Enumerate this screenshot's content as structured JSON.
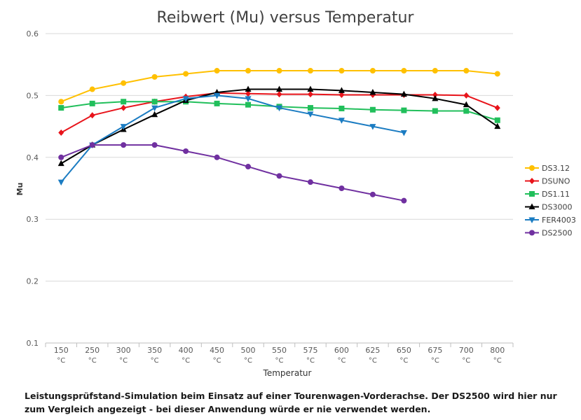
{
  "chart_data": {
    "type": "line",
    "title": "Reibwert (Mu) versus Temperatur",
    "xlabel": "Temperatur",
    "ylabel": "Mu",
    "ylim": [
      0.1,
      0.6
    ],
    "yticks": [
      "0.1",
      "0.2",
      "0.3",
      "0.4",
      "0.5",
      "0.6"
    ],
    "categories": [
      "150",
      "250",
      "300",
      "350",
      "400",
      "450",
      "500",
      "550",
      "575",
      "600",
      "625",
      "650",
      "675",
      "700",
      "800"
    ],
    "unit": "°C",
    "legend_position": "right",
    "grid": "horizontal",
    "series": [
      {
        "name": "DS3.12",
        "color": "#FFC000",
        "marker": "circle",
        "values": [
          0.49,
          0.51,
          0.52,
          0.53,
          0.535,
          0.54,
          0.54,
          0.54,
          0.54,
          0.54,
          0.54,
          0.54,
          0.54,
          0.54,
          0.535
        ]
      },
      {
        "name": "DSUNO",
        "color": "#E8141B",
        "marker": "diamond",
        "values": [
          0.44,
          0.468,
          0.48,
          0.49,
          0.498,
          0.504,
          0.503,
          0.502,
          0.502,
          0.501,
          0.501,
          0.501,
          0.501,
          0.5,
          0.48
        ]
      },
      {
        "name": "DS1.11",
        "color": "#21BF5B",
        "marker": "square",
        "values": [
          0.48,
          0.487,
          0.49,
          0.49,
          0.49,
          0.487,
          0.485,
          0.482,
          0.48,
          0.479,
          0.477,
          0.476,
          0.475,
          0.475,
          0.46
        ]
      },
      {
        "name": "DS3000",
        "color": "#000000",
        "marker": "triangle-up",
        "values": [
          0.39,
          0.42,
          0.445,
          0.469,
          0.492,
          0.505,
          0.51,
          0.51,
          0.51,
          0.508,
          0.505,
          0.502,
          0.495,
          0.485,
          0.45
        ]
      },
      {
        "name": "FER4003",
        "color": "#1B7CC2",
        "marker": "triangle-down",
        "values": [
          0.36,
          0.42,
          0.45,
          0.48,
          0.495,
          0.5,
          0.495,
          0.48,
          0.47,
          0.46,
          0.45,
          0.44,
          null,
          null,
          null
        ]
      },
      {
        "name": "DS2500",
        "color": "#7030A0",
        "marker": "circle",
        "values": [
          0.4,
          0.42,
          0.42,
          0.42,
          0.41,
          0.4,
          0.385,
          0.37,
          0.36,
          0.35,
          0.34,
          0.33,
          null,
          null,
          null
        ]
      }
    ]
  },
  "caption": "Leistungsprüfstand-Simulation beim Einsatz auf einer Tourenwagen-Vorderachse. Der DS2500 wird hier nur zum Vergleich angezeigt - bei dieser Anwendung würde er nie verwendet werden."
}
